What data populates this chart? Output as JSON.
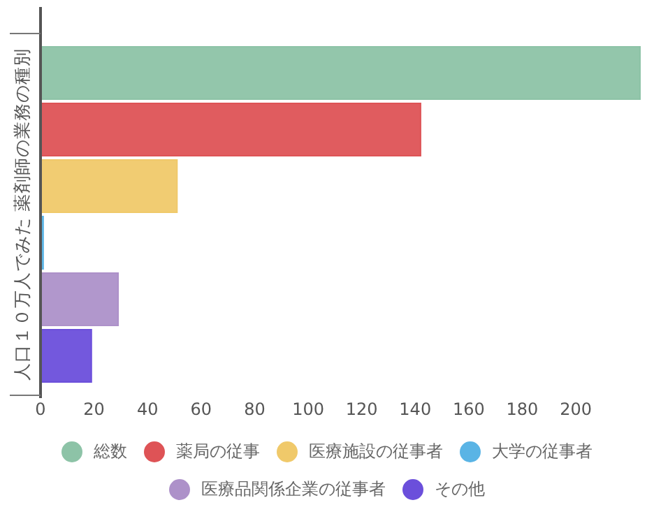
{
  "chart_data": {
    "type": "bar",
    "orientation": "horizontal",
    "ylabel": "人口１０万人でみた 薬剤師の業務の種別",
    "categories": [
      null
    ],
    "series": [
      {
        "name": "総数",
        "color": "#8dc3a7",
        "values": [
          224
        ]
      },
      {
        "name": "薬局の従事",
        "color": "#de5356",
        "values": [
          142
        ]
      },
      {
        "name": "医療施設の従事者",
        "color": "#f0c96a",
        "values": [
          51
        ]
      },
      {
        "name": "大学の従事者",
        "color": "#5ab4e5",
        "values": [
          1
        ]
      },
      {
        "name": "医療品関係企業の従事者",
        "color": "#ad91c9",
        "values": [
          29
        ]
      },
      {
        "name": "その他",
        "color": "#6b4fdb",
        "values": [
          19
        ]
      }
    ],
    "xlim": [
      0,
      224
    ],
    "xticks": [
      0,
      20,
      40,
      60,
      80,
      100,
      120,
      140,
      160,
      180,
      200
    ],
    "legend": "bottom",
    "grid": false
  }
}
